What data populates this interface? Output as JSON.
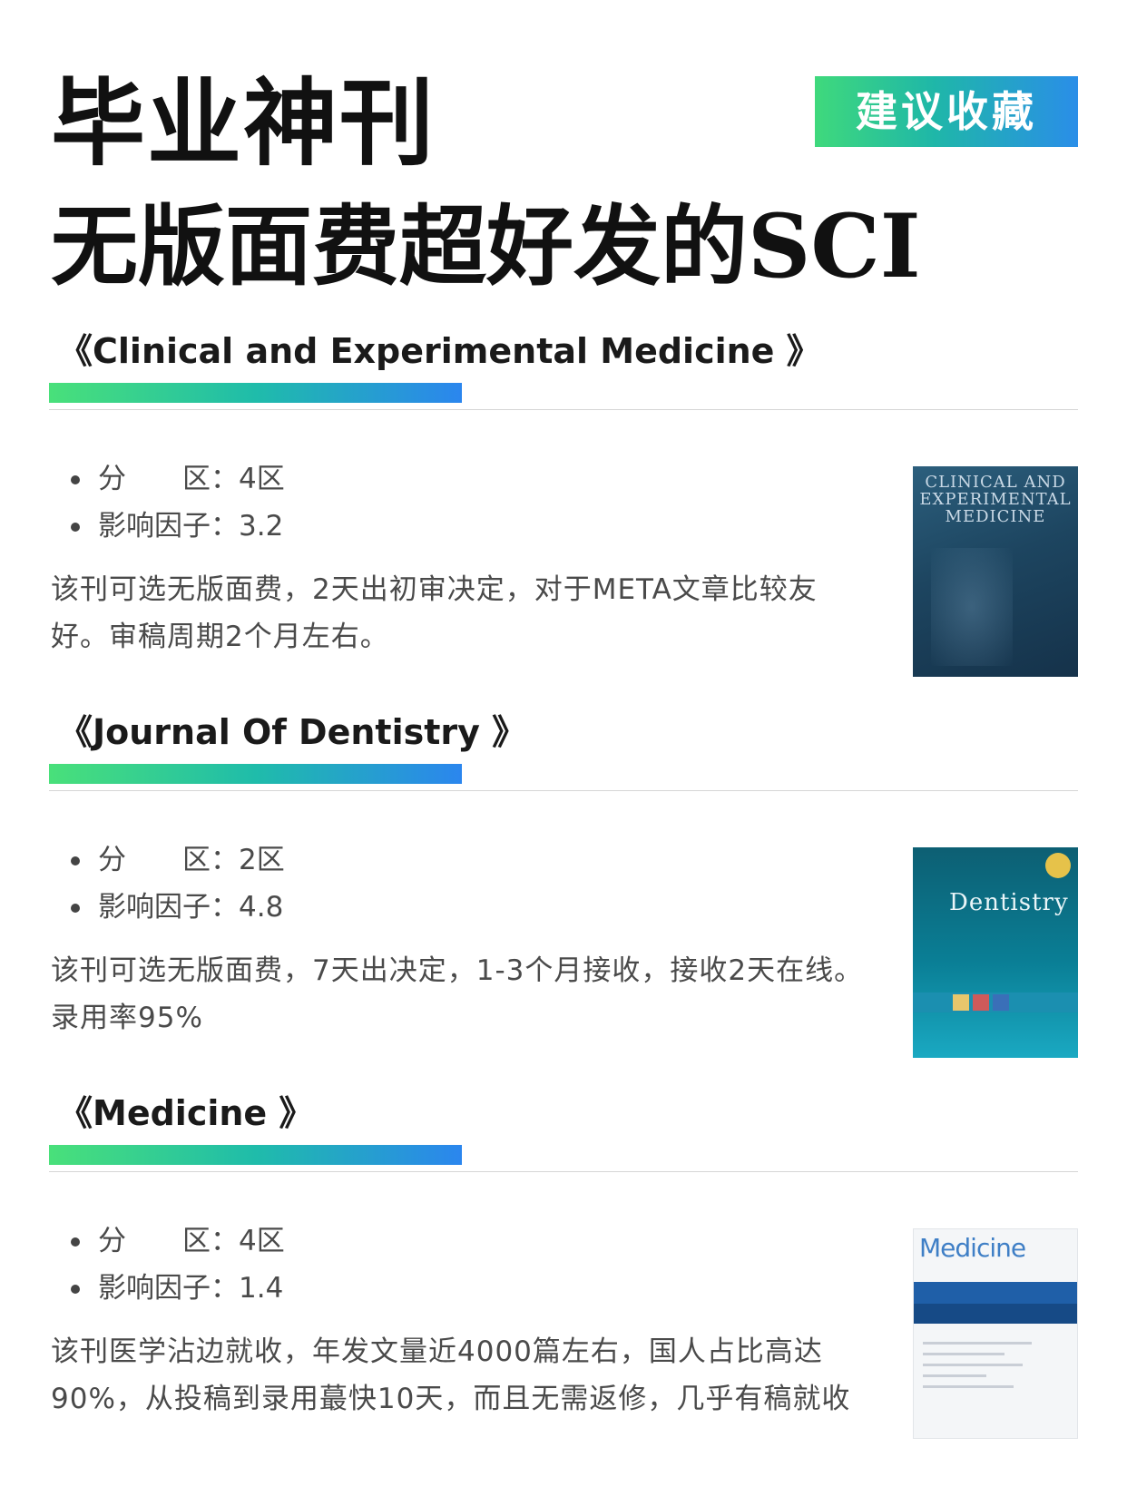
{
  "header": {
    "title_line1": "毕业神刊",
    "title_line2": "无版面费超好发的SCI",
    "badge": "建议收藏",
    "badge_gradient": [
      "#3fd97c",
      "#2a8ee8"
    ]
  },
  "journals": [
    {
      "title": "《Clinical and Experimental Medicine 》",
      "zone_label": "分　　区：",
      "zone": "4区",
      "if_label": "影响因子：",
      "impact_factor": "3.2",
      "description": "该刊可选无版面费，2天出初审决定，对于META文章比较友好。审稿周期2个月左右。",
      "cover_text": "CLINICAL AND EXPERIMENTAL MEDICINE"
    },
    {
      "title": "《Journal Of Dentistry 》",
      "zone_label": "分　　区：",
      "zone": "2区",
      "if_label": "影响因子：",
      "impact_factor": "4.8",
      "description": "该刊可选无版面费，7天出决定，1-3个月接收，接收2天在线。录用率95%",
      "cover_text": "Dentistry"
    },
    {
      "title": "《Medicine 》",
      "zone_label": "分　　区：",
      "zone": "4区",
      "if_label": "影响因子：",
      "impact_factor": "1.4",
      "description": "该刊医学沾边就收，年发文量近4000篇左右，国人占比高达90%，从投稿到录用蕞快10天，而且无需返修，几乎有稿就收",
      "cover_text": "Medicine"
    }
  ]
}
